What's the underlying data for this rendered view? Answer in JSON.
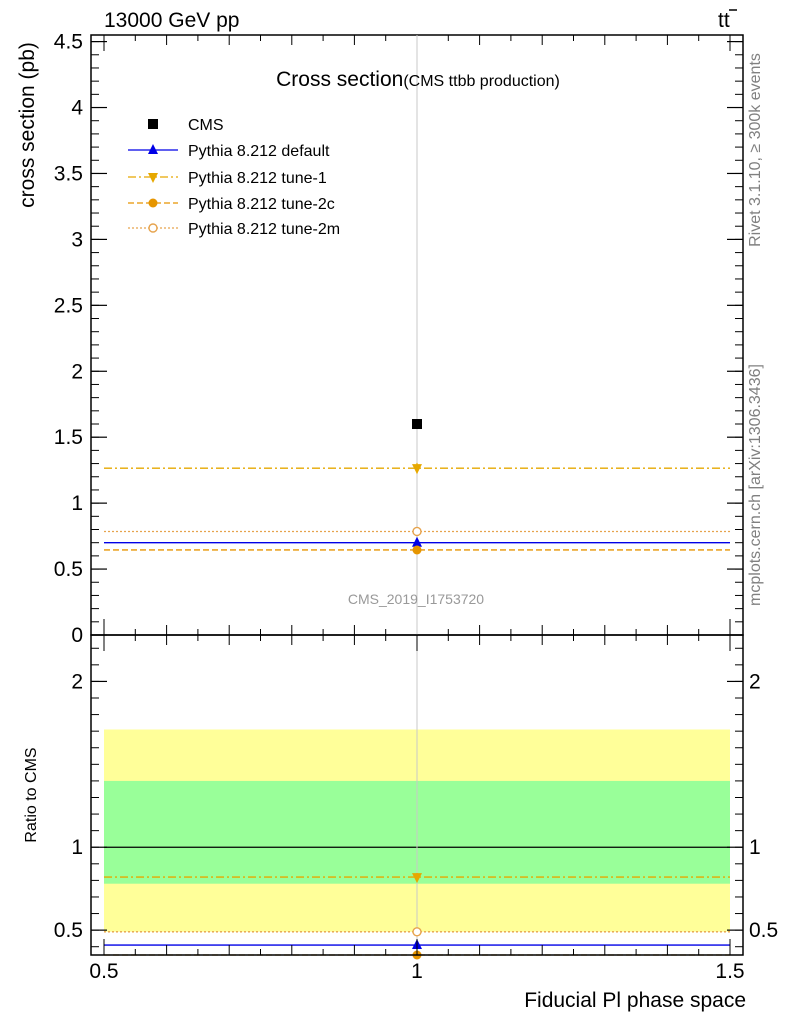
{
  "header": {
    "left": "13000 GeV pp",
    "right_base": "tt",
    "right_bar_t": "t"
  },
  "side_labels": {
    "rivet": "Rivet 3.1.10, ≥ 300k events",
    "mcplots": "mcplots.cern.ch [arXiv:1306.3436]"
  },
  "watermark": "CMS_2019_I1753720",
  "chart_data": [
    {
      "type": "scatter",
      "panel": "main",
      "title": "Cross section",
      "subtitle": "(CMS ttbb production)",
      "ylabel": "cross section (pb)",
      "xlim": [
        0.5,
        1.5
      ],
      "ylim": [
        0,
        4.55
      ],
      "yticks": [
        0,
        0.5,
        1,
        1.5,
        2,
        2.5,
        3,
        3.5,
        4,
        4.5
      ],
      "ytick_labels": [
        "0",
        "0.5",
        "1",
        "1.5",
        "2",
        "2.5",
        "3",
        "3.5",
        "4",
        "4.5"
      ],
      "legend_position": "top-left",
      "series": [
        {
          "name": "CMS",
          "kind": "data",
          "color": "#000000",
          "marker": "square",
          "x": [
            1
          ],
          "y": [
            1.6
          ],
          "yerr": [
            0
          ]
        },
        {
          "name": "Pythia 8.212 default",
          "kind": "mc",
          "color": "#0000e6",
          "marker": "triangle-up",
          "line": "solid",
          "x": [
            1
          ],
          "y": [
            0.7
          ],
          "yerr": [
            0.02
          ]
        },
        {
          "name": "Pythia 8.212 tune-1",
          "kind": "mc",
          "color": "#e6a800",
          "marker": "triangle-down",
          "line": "dashdot",
          "x": [
            1
          ],
          "y": [
            1.265
          ],
          "yerr": [
            0.04
          ]
        },
        {
          "name": "Pythia 8.212 tune-2c",
          "kind": "mc",
          "color": "#e69500",
          "marker": "circle",
          "line": "dashed",
          "x": [
            1
          ],
          "y": [
            0.645
          ],
          "yerr": [
            0.02
          ]
        },
        {
          "name": "Pythia 8.212 tune-2m",
          "kind": "mc",
          "color": "#e6a34d",
          "marker": "circle-open",
          "line": "dotted",
          "x": [
            1
          ],
          "y": [
            0.785
          ],
          "yerr": [
            0.03
          ]
        }
      ]
    },
    {
      "type": "scatter",
      "panel": "ratio",
      "ylabel": "Ratio to CMS",
      "xlabel": "Fiducial Pl phase space",
      "xlim": [
        0.5,
        1.5
      ],
      "ylim": [
        0.35,
        2.28
      ],
      "yticks": [
        0.5,
        1,
        2
      ],
      "ytick_labels": [
        "0.5",
        "1",
        "2"
      ],
      "xticks": [
        0.5,
        1,
        1.5
      ],
      "xtick_labels": [
        "0.5",
        "1",
        "1.5"
      ],
      "bands": [
        {
          "color": "#ffff99",
          "low": 0.49,
          "high": 1.71
        },
        {
          "color": "#99ff99",
          "low": 0.78,
          "high": 1.4
        }
      ],
      "reference_line": 1,
      "series": [
        {
          "name": "Pythia 8.212 default",
          "color": "#0000e6",
          "marker": "triangle-up",
          "line": "solid",
          "x": [
            1
          ],
          "y": [
            0.41
          ],
          "yerr": [
            0.025
          ]
        },
        {
          "name": "Pythia 8.212 tune-1",
          "color": "#e6a800",
          "marker": "triangle-down",
          "line": "dashdot",
          "x": [
            1
          ],
          "y": [
            0.82
          ],
          "yerr": [
            0.025
          ]
        },
        {
          "name": "Pythia 8.212 tune-2c",
          "color": "#e69500",
          "marker": "circle",
          "line": "dashed",
          "x": [
            1
          ],
          "y": [
            0.35
          ],
          "yerr": [
            0.02
          ]
        },
        {
          "name": "Pythia 8.212 tune-2m",
          "color": "#e6a34d",
          "marker": "circle-open",
          "line": "dotted",
          "x": [
            1
          ],
          "y": [
            0.49
          ],
          "yerr": [
            0.02
          ]
        }
      ]
    }
  ]
}
